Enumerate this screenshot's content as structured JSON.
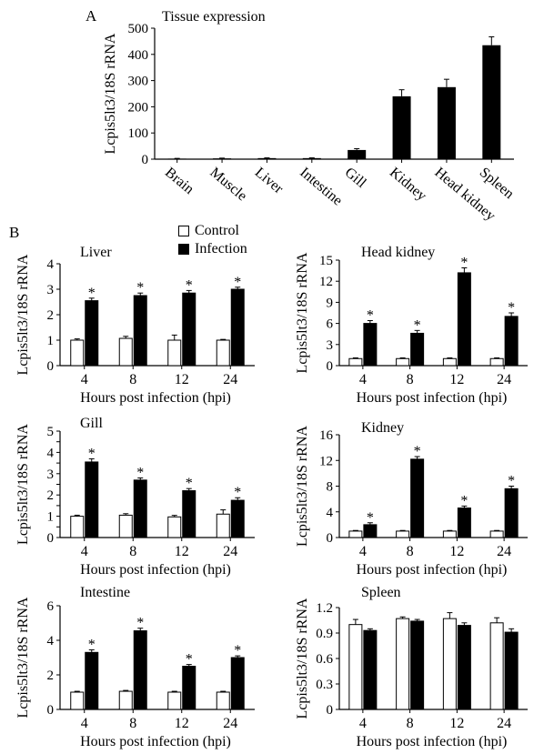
{
  "panel_labels": {
    "a": "A",
    "b": "B"
  },
  "legend": {
    "control_label": "Control",
    "infection_label": "Infection"
  },
  "colors": {
    "control": "#ffffff",
    "infection": "#000000",
    "axis": "#000000"
  },
  "chart_data": [
    {
      "id": "tissue",
      "type": "bar",
      "title": "Tissue expression",
      "ylabel": "Lcpis5lt3/18S rRNA",
      "xlabel": "",
      "categories": [
        "Brain",
        "Muscle",
        "Liver",
        "Intestine",
        "Gill",
        "Kidney",
        "Head kidney",
        "Spleen"
      ],
      "values": [
        2,
        3,
        4,
        4,
        35,
        240,
        275,
        435
      ],
      "errors": [
        1,
        1,
        1,
        1,
        5,
        25,
        30,
        32
      ],
      "ylim": [
        0,
        500
      ],
      "yticks": [
        0,
        100,
        200,
        300,
        400,
        500
      ]
    },
    {
      "id": "liver",
      "type": "bar",
      "title": "Liver",
      "ylabel": "Lcpis5lt3/18S rRNA",
      "xlabel": "Hours post infection (hpi)",
      "categories": [
        "4",
        "8",
        "12",
        "24"
      ],
      "series": [
        {
          "name": "Control",
          "values": [
            1.0,
            1.07,
            1.0,
            1.0
          ],
          "errors": [
            0.05,
            0.08,
            0.2,
            0.03
          ]
        },
        {
          "name": "Infection",
          "values": [
            2.55,
            2.75,
            2.85,
            3.0
          ],
          "errors": [
            0.1,
            0.1,
            0.1,
            0.08
          ]
        }
      ],
      "significant": [
        "*",
        "*",
        "*",
        "*"
      ],
      "ylim": [
        0,
        4
      ],
      "yticks": [
        0,
        1,
        2,
        3,
        4
      ]
    },
    {
      "id": "head_kidney",
      "type": "bar",
      "title": "Head kidney",
      "ylabel": "Lcpis5lt3/18S rRNA",
      "xlabel": "Hours post infection (hpi)",
      "categories": [
        "4",
        "8",
        "12",
        "24"
      ],
      "series": [
        {
          "name": "Control",
          "values": [
            1.0,
            1.0,
            1.0,
            1.0
          ],
          "errors": [
            0.1,
            0.1,
            0.1,
            0.1
          ]
        },
        {
          "name": "Infection",
          "values": [
            6.0,
            4.6,
            13.2,
            7.0
          ],
          "errors": [
            0.4,
            0.4,
            0.7,
            0.5
          ]
        }
      ],
      "significant": [
        "*",
        "*",
        "*",
        "*"
      ],
      "ylim": [
        0,
        15
      ],
      "yticks": [
        0,
        3,
        6,
        9,
        12,
        15
      ]
    },
    {
      "id": "gill",
      "type": "bar",
      "title": "Gill",
      "ylabel": "Lcpis5lt3/18S rRNA",
      "xlabel": "Hours post infection (hpi)",
      "categories": [
        "4",
        "8",
        "12",
        "24"
      ],
      "series": [
        {
          "name": "Control",
          "values": [
            1.0,
            1.05,
            0.97,
            1.1
          ],
          "errors": [
            0.05,
            0.07,
            0.07,
            0.2
          ]
        },
        {
          "name": "Infection",
          "values": [
            3.55,
            2.7,
            2.2,
            1.75
          ],
          "errors": [
            0.15,
            0.1,
            0.1,
            0.12
          ]
        }
      ],
      "significant": [
        "*",
        "*",
        "*",
        "*"
      ],
      "ylim": [
        0,
        5
      ],
      "yticks": [
        0,
        0.5,
        1,
        1.5,
        2,
        2.5,
        3,
        3.5,
        4,
        4.5,
        5
      ],
      "yticklabels": [
        "0",
        "",
        "1",
        "",
        "2",
        "",
        "3",
        "",
        "4",
        "",
        "5"
      ]
    },
    {
      "id": "kidney",
      "type": "bar",
      "title": "Kidney",
      "ylabel": "Lcpis5lt3/18S rRNA",
      "xlabel": "Hours post infection (hpi)",
      "categories": [
        "4",
        "8",
        "12",
        "24"
      ],
      "series": [
        {
          "name": "Control",
          "values": [
            1.0,
            1.0,
            1.0,
            1.0
          ],
          "errors": [
            0.1,
            0.1,
            0.1,
            0.1
          ]
        },
        {
          "name": "Infection",
          "values": [
            2.0,
            12.2,
            4.6,
            7.6
          ],
          "errors": [
            0.3,
            0.4,
            0.3,
            0.4
          ]
        }
      ],
      "significant": [
        "*",
        "*",
        "*",
        "*"
      ],
      "ylim": [
        0,
        16
      ],
      "yticks": [
        0,
        4,
        8,
        12,
        16
      ]
    },
    {
      "id": "intestine",
      "type": "bar",
      "title": "Intestine",
      "ylabel": "Lcpis5lt3/18S rRNA",
      "xlabel": "Hours post infection (hpi)",
      "categories": [
        "4",
        "8",
        "12",
        "24"
      ],
      "series": [
        {
          "name": "Control",
          "values": [
            1.0,
            1.05,
            1.0,
            1.0
          ],
          "errors": [
            0.05,
            0.05,
            0.05,
            0.05
          ]
        },
        {
          "name": "Infection",
          "values": [
            3.3,
            4.55,
            2.5,
            3.0
          ],
          "errors": [
            0.15,
            0.15,
            0.1,
            0.1
          ]
        }
      ],
      "significant": [
        "*",
        "*",
        "*",
        "*"
      ],
      "ylim": [
        0,
        6
      ],
      "yticks": [
        0,
        2,
        4,
        6
      ]
    },
    {
      "id": "spleen",
      "type": "bar",
      "title": "Spleen",
      "ylabel": "Lcpis5lt3/18S rRNA",
      "xlabel": "Hours post infection (hpi)",
      "categories": [
        "4",
        "8",
        "12",
        "24"
      ],
      "series": [
        {
          "name": "Control",
          "values": [
            1.0,
            1.07,
            1.07,
            1.02
          ],
          "errors": [
            0.06,
            0.02,
            0.07,
            0.06
          ]
        },
        {
          "name": "Infection",
          "values": [
            0.93,
            1.04,
            0.99,
            0.91
          ],
          "errors": [
            0.02,
            0.02,
            0.03,
            0.04
          ]
        }
      ],
      "significant": [
        "",
        "",
        "",
        ""
      ],
      "ylim": [
        0,
        1.2
      ],
      "yticks": [
        0,
        0.3,
        0.6,
        0.9,
        1.2
      ],
      "yticklabels": [
        "0",
        "0.3",
        "0.6",
        "0.9",
        "1.2"
      ]
    }
  ]
}
